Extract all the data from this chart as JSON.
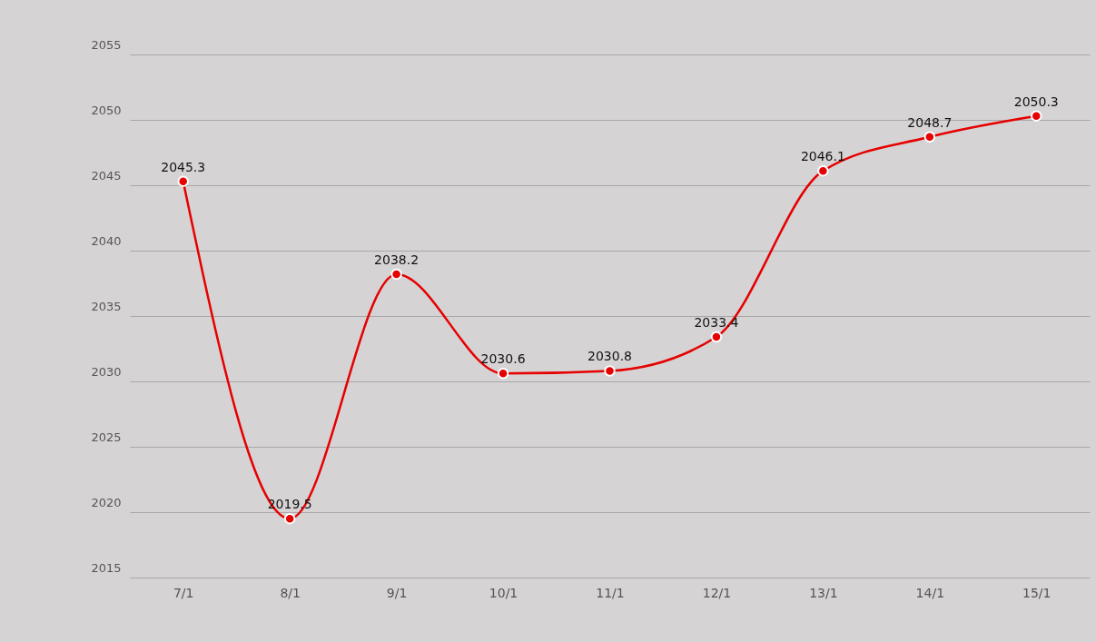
{
  "chart_data": {
    "type": "line",
    "categories": [
      "7/1",
      "8/1",
      "9/1",
      "10/1",
      "11/1",
      "12/1",
      "13/1",
      "14/1",
      "15/1"
    ],
    "series": [
      {
        "color": "#e60000",
        "values": [
          2045.3,
          2019.5,
          2038.2,
          2030.6,
          2030.8,
          2033.4,
          2046.1,
          2048.7,
          2050.3
        ]
      }
    ],
    "ylim": [
      2015,
      2055
    ],
    "yticks": [
      2015,
      2020,
      2025,
      2030,
      2035,
      2040,
      2045,
      2050,
      2055
    ],
    "grid": "y",
    "marker": "circle",
    "line_style": "solid",
    "data_labels": true
  }
}
